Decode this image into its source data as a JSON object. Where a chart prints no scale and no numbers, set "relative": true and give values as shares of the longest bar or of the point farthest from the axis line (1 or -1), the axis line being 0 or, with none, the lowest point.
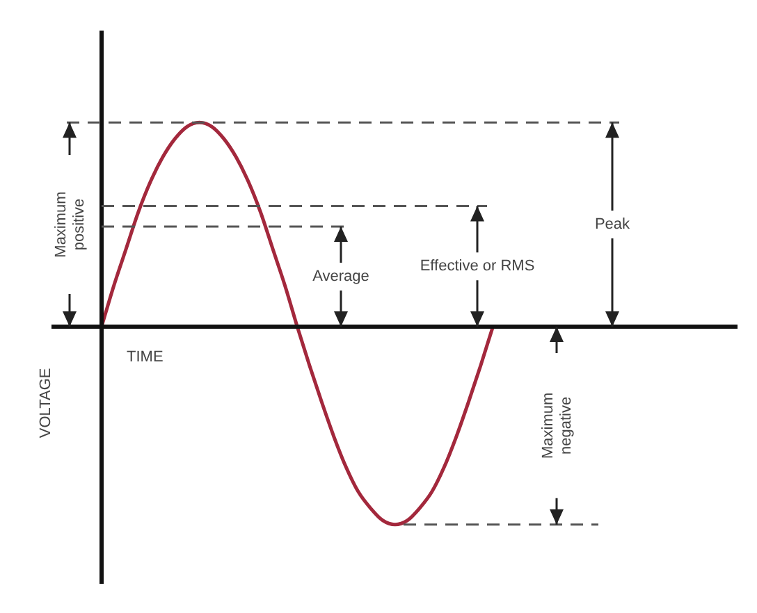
{
  "chart_data": {
    "type": "line",
    "relative": true,
    "xlabel": "TIME",
    "ylabel": "VOLTAGE",
    "tick_labels": false,
    "legend": false,
    "marker": "none",
    "categories": [
      null,
      null,
      null,
      null,
      null,
      null,
      null,
      null,
      null,
      null,
      null,
      null,
      null,
      null,
      null,
      null,
      null,
      null,
      null,
      null,
      null,
      null,
      null,
      null,
      null,
      null,
      null,
      null,
      null,
      null,
      null,
      null,
      null,
      null,
      null,
      null,
      null,
      null,
      null,
      null,
      null,
      null,
      null,
      null,
      null,
      null,
      null,
      null,
      null,
      null,
      null,
      null,
      null
    ],
    "series": [
      {
        "color": "#a3283c",
        "values": [
          0,
          0.2,
          0.38,
          0.56,
          0.71,
          0.83,
          0.92,
          0.98,
          1,
          0.98,
          0.92,
          0.83,
          0.71,
          0.56,
          0.38,
          0.2,
          0,
          -0.19,
          -0.37,
          -0.54,
          -0.69,
          -0.81,
          -0.89,
          -0.95,
          -0.97,
          -0.95,
          -0.89,
          -0.81,
          -0.69,
          -0.54,
          -0.37,
          -0.19,
          0,
          null,
          null,
          null,
          null,
          null,
          null,
          null,
          null,
          null,
          null,
          null,
          null,
          null,
          null,
          null,
          null,
          null,
          null,
          null,
          null
        ]
      }
    ],
    "ref_lines": [
      {
        "axis": "y",
        "value": 1,
        "label": "Peak",
        "color": "#555555",
        "line_style": "dashed"
      },
      {
        "axis": "y",
        "value": 0.59,
        "label": "Effective or RMS",
        "color": "#555555",
        "line_style": "dashed"
      },
      {
        "axis": "y",
        "value": 0.49,
        "label": "Average",
        "color": "#555555",
        "line_style": "dashed"
      },
      {
        "axis": "y",
        "value": -0.97,
        "color": "#555555",
        "line_style": "dashed"
      }
    ],
    "annotations": [
      "Maximum positive",
      "Maximum negative"
    ]
  }
}
